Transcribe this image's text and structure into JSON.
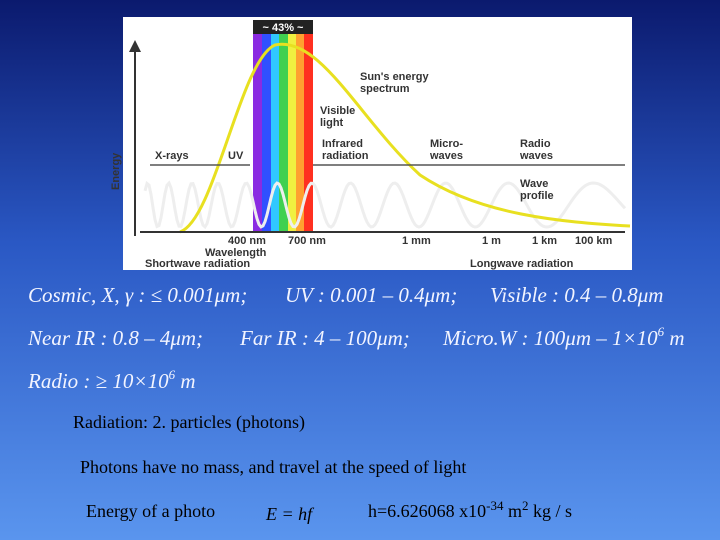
{
  "figure": {
    "share_label": "~ 43% ~",
    "energy_axis": "Energy",
    "wavelength_axis": "Wavelength",
    "shortwave": "Shortwave radiation",
    "longwave": "Longwave radiation",
    "labels": [
      [
        "Sun's energy",
        "spectrum"
      ],
      [
        "Visible",
        "light"
      ],
      [
        "X-rays"
      ],
      [
        "UV"
      ],
      [
        "Infrared",
        "radiation"
      ],
      [
        "Micro-",
        "waves"
      ],
      [
        "Radio",
        "waves"
      ],
      [
        "Wave",
        "profile"
      ]
    ],
    "wavelength_ticks": [
      "400 nm",
      "700 nm",
      "1 mm",
      "1 m",
      "1 km",
      "100 km"
    ]
  },
  "equations": [
    [
      "Cosmic, X, γ : ≤ 0.001μm;",
      "UV : 0.001 – 0.4μm;",
      "Visible : 0.4 – 0.8μm"
    ],
    [
      "Near IR : 0.8 – 4μm;",
      "Far IR : 4 – 100μm;",
      {
        "text": "Micro.W : 100μm – 1×10",
        "sup": "6",
        "after": " m"
      }
    ],
    [
      {
        "text": "Radio : ≥ 10×10",
        "sup": "6",
        "after": " m"
      }
    ]
  ],
  "lines": {
    "radiation": "Radiation: 2. particles (photons)",
    "photons": "Photons have no mass, and travel at the speed of light",
    "energy_text": "Energy of a photo",
    "formula": "E = hf",
    "planck": {
      "text": "h=6.626068 x10",
      "sup": "-34",
      "mid": " m",
      "sup2": "2",
      "after": " kg / s"
    }
  }
}
